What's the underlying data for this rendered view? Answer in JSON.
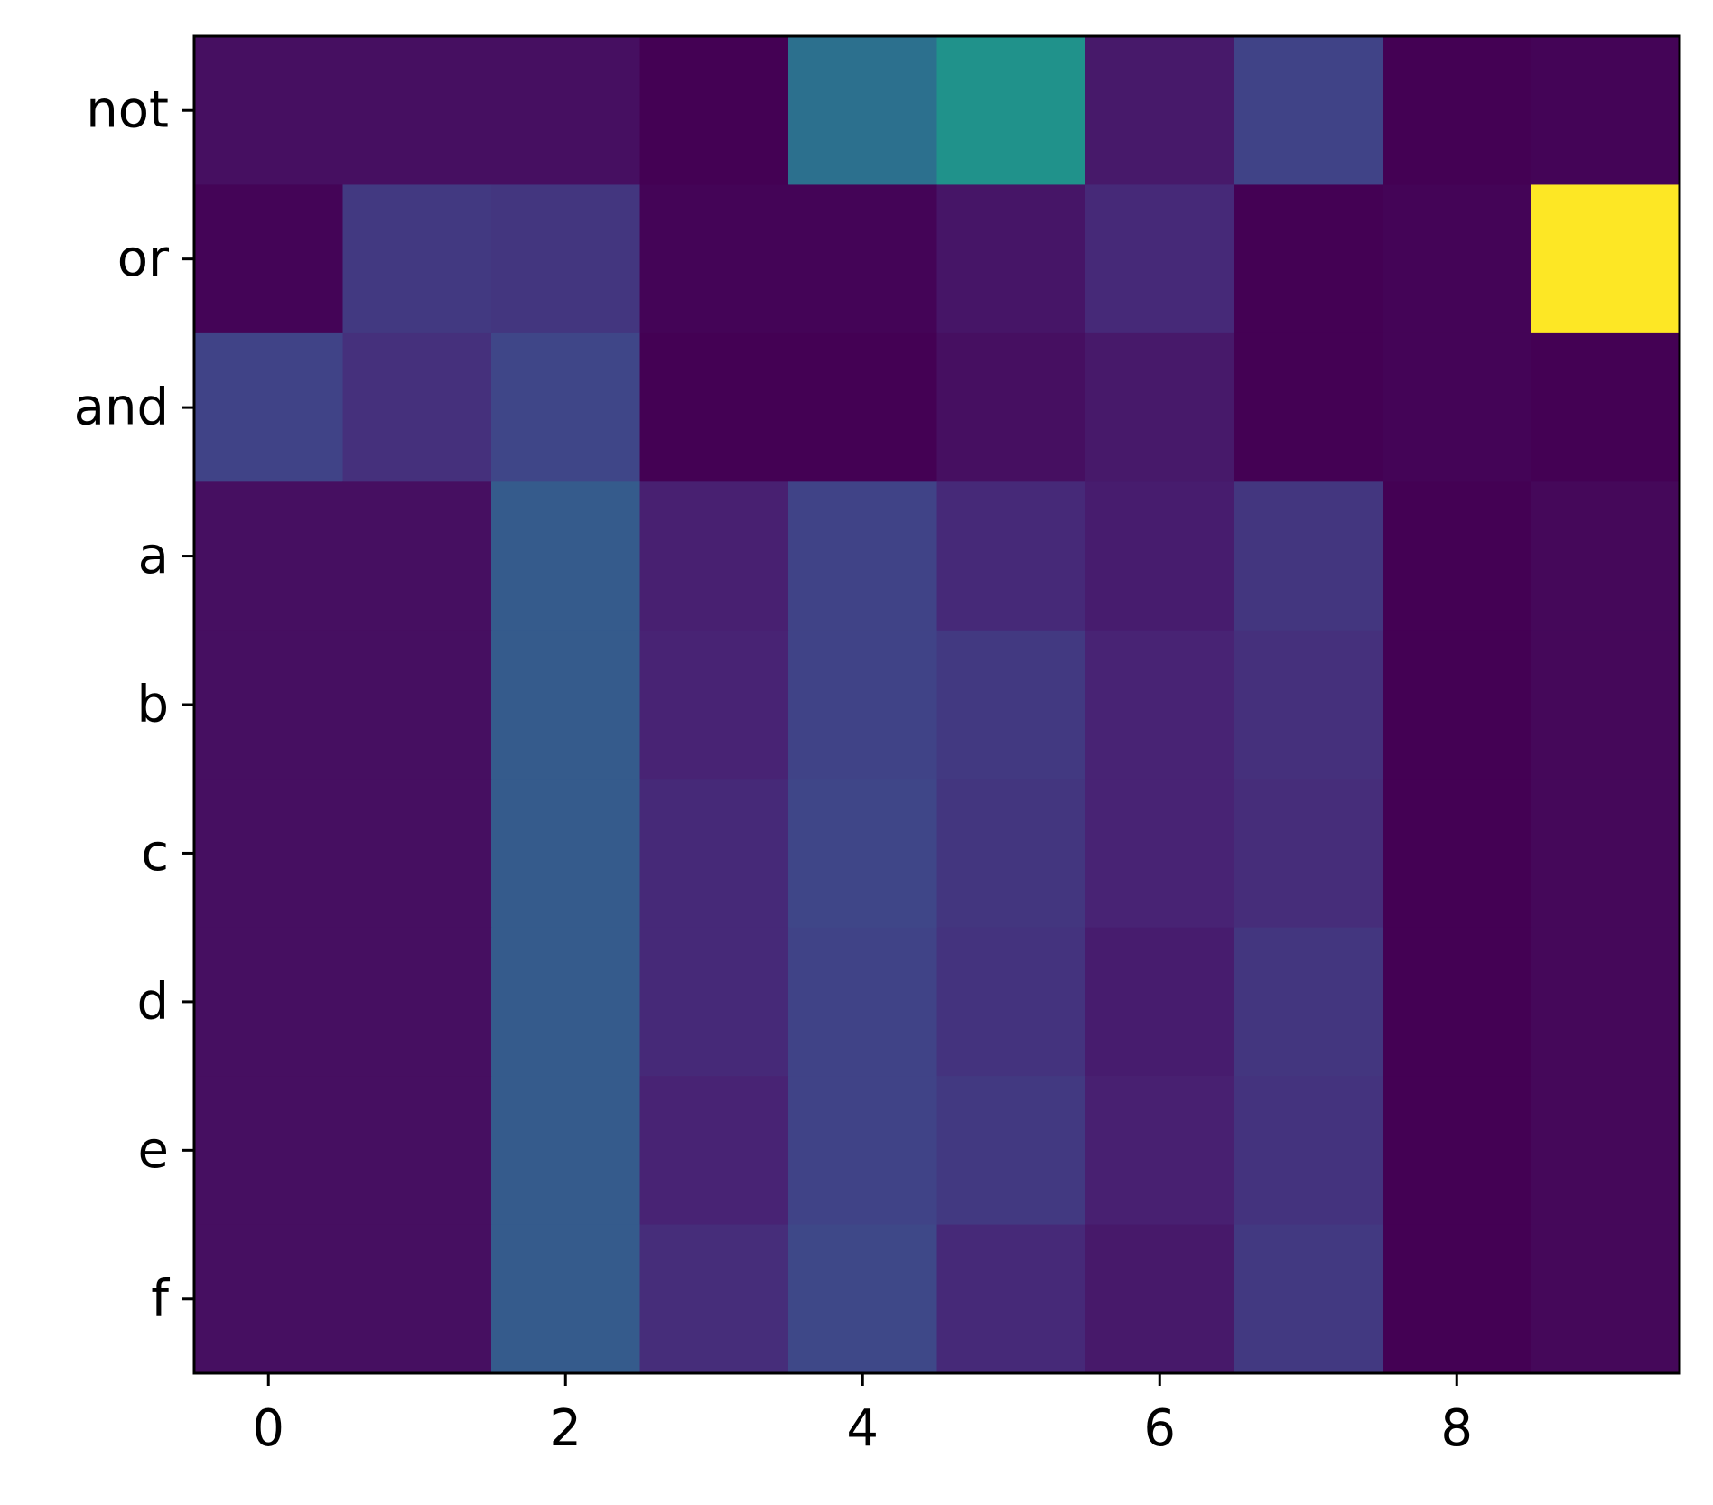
{
  "chart_data": {
    "type": "heatmap",
    "title": "",
    "xlabel": "",
    "ylabel": "",
    "colormap": "viridis",
    "x_categories": [
      0,
      1,
      2,
      3,
      4,
      5,
      6,
      7,
      8,
      9
    ],
    "y_categories": [
      "not",
      "or",
      "and",
      "a",
      "b",
      "c",
      "d",
      "e",
      "f"
    ],
    "x_ticks": [
      0,
      2,
      4,
      6,
      8
    ],
    "x_tick_labels": [
      "0",
      "2",
      "4",
      "6",
      "8"
    ],
    "values": [
      [
        0.04,
        0.04,
        0.04,
        0.0,
        0.37,
        0.51,
        0.07,
        0.2,
        0.0,
        0.01
      ],
      [
        0.01,
        0.17,
        0.16,
        0.01,
        0.01,
        0.06,
        0.12,
        0.0,
        0.01,
        1.0
      ],
      [
        0.2,
        0.14,
        0.21,
        0.0,
        0.0,
        0.04,
        0.07,
        0.0,
        0.01,
        0.0
      ],
      [
        0.04,
        0.04,
        0.29,
        0.09,
        0.2,
        0.12,
        0.08,
        0.16,
        0.0,
        0.02
      ],
      [
        0.04,
        0.04,
        0.29,
        0.1,
        0.2,
        0.17,
        0.1,
        0.14,
        0.0,
        0.02
      ],
      [
        0.04,
        0.04,
        0.29,
        0.12,
        0.21,
        0.16,
        0.1,
        0.13,
        0.0,
        0.02
      ],
      [
        0.04,
        0.04,
        0.29,
        0.12,
        0.2,
        0.15,
        0.08,
        0.16,
        0.0,
        0.02
      ],
      [
        0.04,
        0.04,
        0.29,
        0.1,
        0.2,
        0.17,
        0.09,
        0.15,
        0.0,
        0.02
      ],
      [
        0.04,
        0.04,
        0.29,
        0.13,
        0.22,
        0.12,
        0.07,
        0.17,
        0.0,
        0.02
      ]
    ],
    "grid": false,
    "colorbar": false
  }
}
